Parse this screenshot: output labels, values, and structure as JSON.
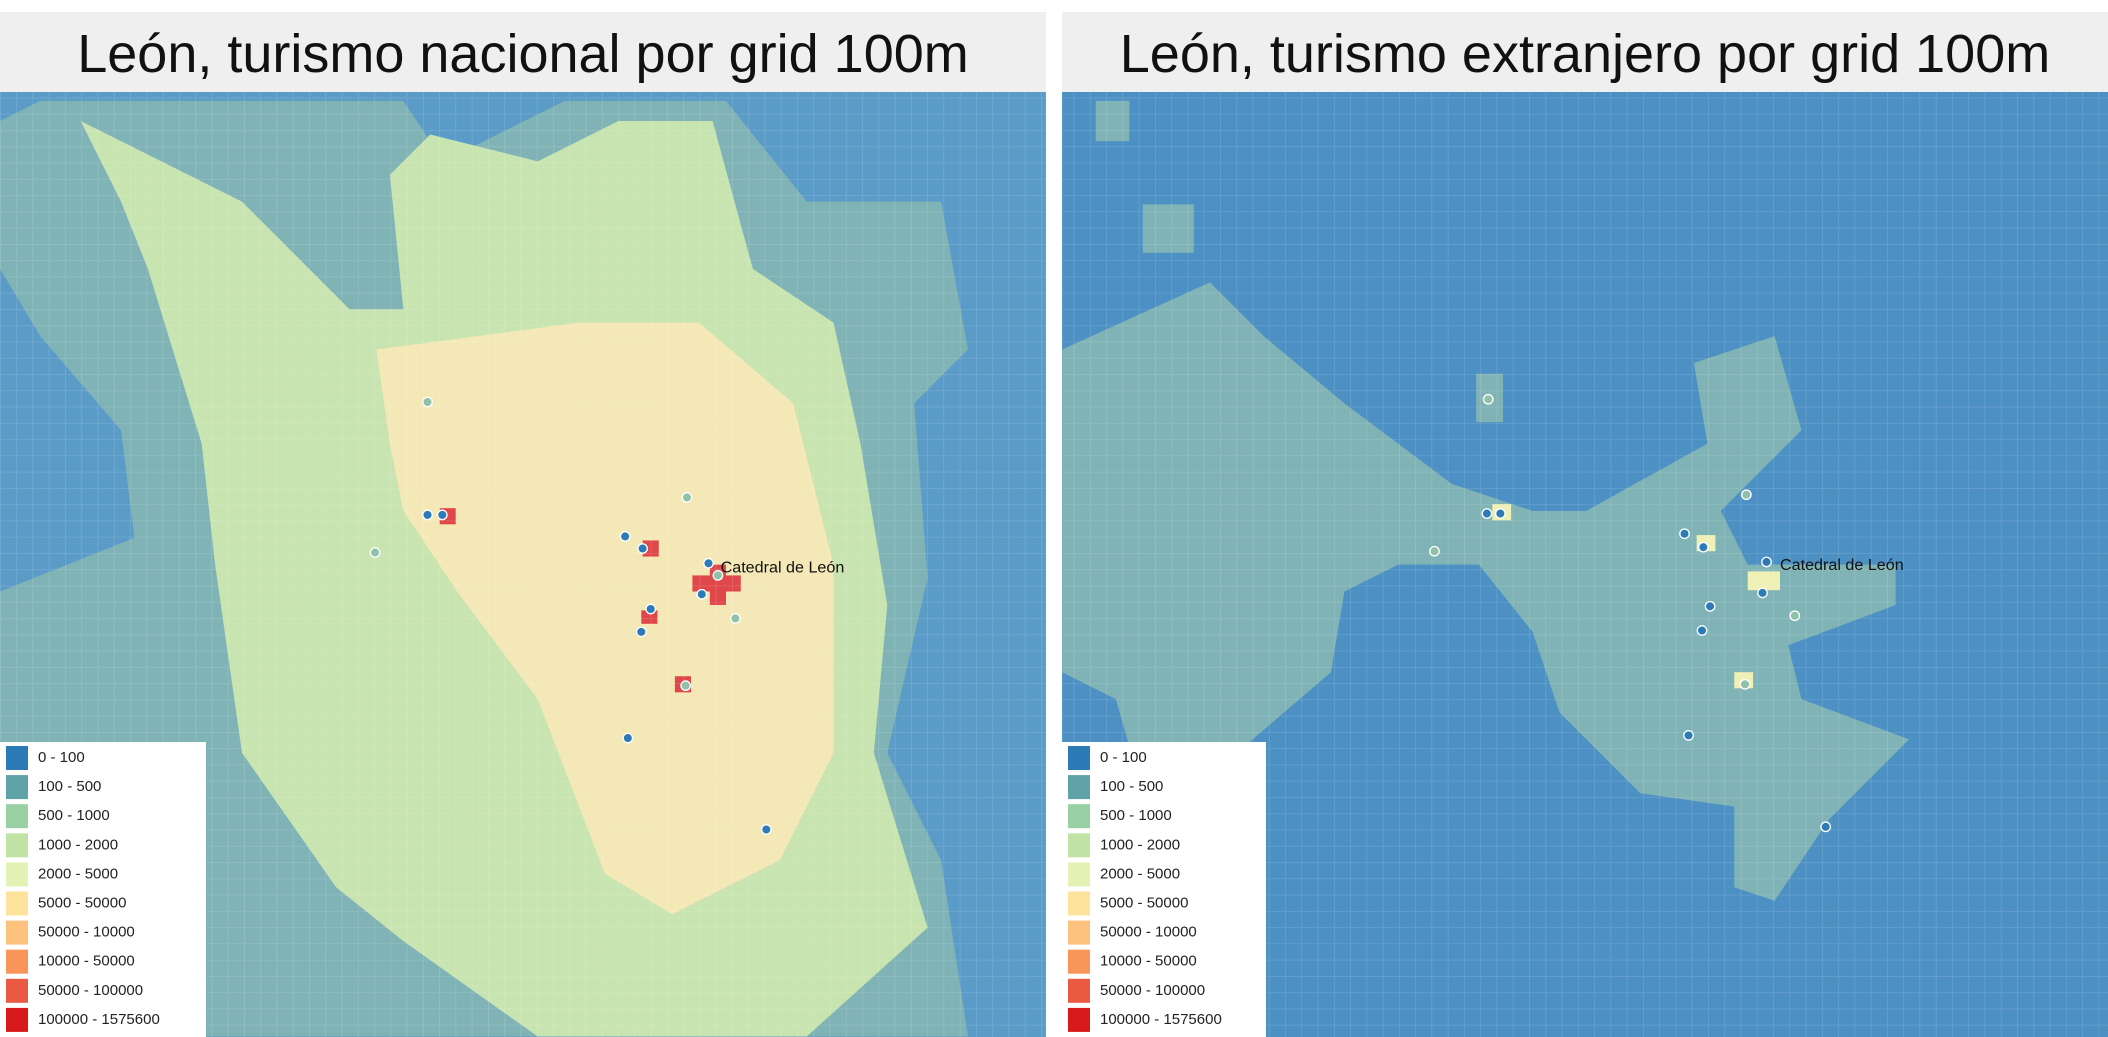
{
  "panels": [
    {
      "title": "León, turismo nacional por grid 100m",
      "label": "Catedral de León",
      "legend": [
        "0 - 100",
        "100 - 500",
        "500 - 1000",
        "1000 - 2000",
        "2000 - 5000",
        "5000 - 50000",
        "50000 - 10000",
        "10000 - 50000",
        "50000 - 100000",
        "100000 - 1575600"
      ]
    },
    {
      "title": "León, turismo extranjero por grid 100m",
      "label": "Catedral de León",
      "legend": [
        "0 - 100",
        "100 - 500",
        "500 - 1000",
        "1000 - 2000",
        "2000 - 5000",
        "5000 - 50000",
        "50000 - 10000",
        "10000 - 50000",
        "50000 - 100000",
        "100000 - 1575600"
      ]
    }
  ],
  "legend_colors": [
    "#2c7bb6",
    "#5fa3a8",
    "#98cfa3",
    "#c1e3a6",
    "#e5f2b5",
    "#fde39c",
    "#fdc27e",
    "#f99558",
    "#ea5a43",
    "#d7191c"
  ]
}
